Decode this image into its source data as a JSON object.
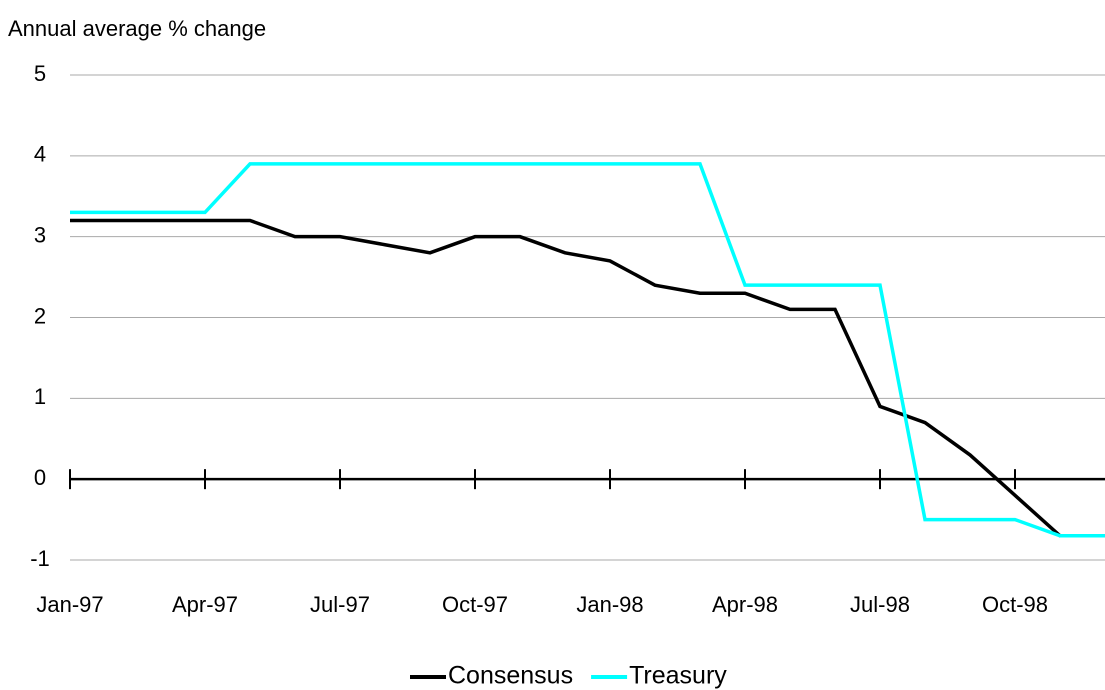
{
  "chart_data": {
    "type": "line",
    "y_axis_label": "Annual average % change",
    "categories": [
      "Jan-97",
      null,
      null,
      "Apr-97",
      null,
      null,
      "Jul-97",
      null,
      null,
      "Oct-97",
      null,
      null,
      "Jan-98",
      null,
      null,
      "Apr-98",
      null,
      null,
      "Jul-98",
      null,
      null,
      "Oct-98",
      null,
      null
    ],
    "series": [
      {
        "name": "Consensus",
        "color": "#000000",
        "values": [
          3.2,
          3.2,
          3.2,
          3.2,
          3.2,
          3.0,
          3.0,
          2.9,
          2.8,
          3.0,
          3.0,
          2.8,
          2.7,
          2.4,
          2.3,
          2.3,
          2.1,
          2.1,
          0.9,
          0.7,
          0.3,
          -0.2,
          -0.7,
          -0.7
        ]
      },
      {
        "name": "Treasury",
        "color": "#00ffff",
        "values": [
          3.3,
          3.3,
          3.3,
          3.3,
          3.9,
          3.9,
          3.9,
          3.9,
          3.9,
          3.9,
          3.9,
          3.9,
          3.9,
          3.9,
          3.9,
          2.4,
          2.4,
          2.4,
          2.4,
          -0.5,
          -0.5,
          -0.5,
          -0.7,
          -0.7
        ]
      }
    ],
    "ylim": [
      -1,
      5
    ],
    "yticks": [
      -1,
      0,
      1,
      2,
      3,
      4,
      5
    ],
    "grid": true,
    "legend": "bottom"
  }
}
